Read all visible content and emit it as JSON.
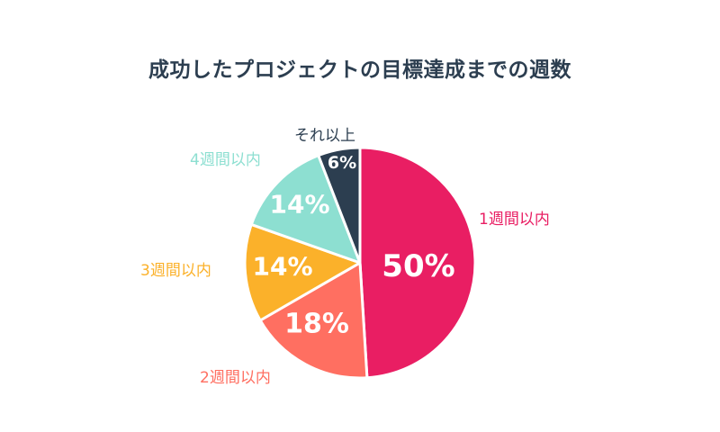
{
  "chart_data": {
    "type": "pie",
    "title": "成功したプロジェクトの目標達成までの週数",
    "categories": [
      "1週間以内",
      "2週間以内",
      "3週間以内",
      "4週間以内",
      "それ以上"
    ],
    "values": [
      50,
      18,
      14,
      14,
      6
    ],
    "value_labels": [
      "50%",
      "18%",
      "14%",
      "14%",
      "6%"
    ],
    "colors": [
      "#e91e63",
      "#ff6f61",
      "#fbb12a",
      "#8ddfd1",
      "#2c3e50"
    ],
    "start_angle": "12 o'clock, clockwise",
    "legend": "labels placed outside slices, colored to match"
  },
  "title": "成功したプロジェクトの目標達成までの週数",
  "slices": [
    {
      "label": "1週間以内",
      "pct": "50%",
      "color": "#e91e63"
    },
    {
      "label": "2週間以内",
      "pct": "18%",
      "color": "#ff6f61"
    },
    {
      "label": "3週間以内",
      "pct": "14%",
      "color": "#fbb12a"
    },
    {
      "label": "4週間以内",
      "pct": "14%",
      "color": "#8ddfd1"
    },
    {
      "label": "それ以上",
      "pct": "6%",
      "color": "#2c3e50"
    }
  ]
}
